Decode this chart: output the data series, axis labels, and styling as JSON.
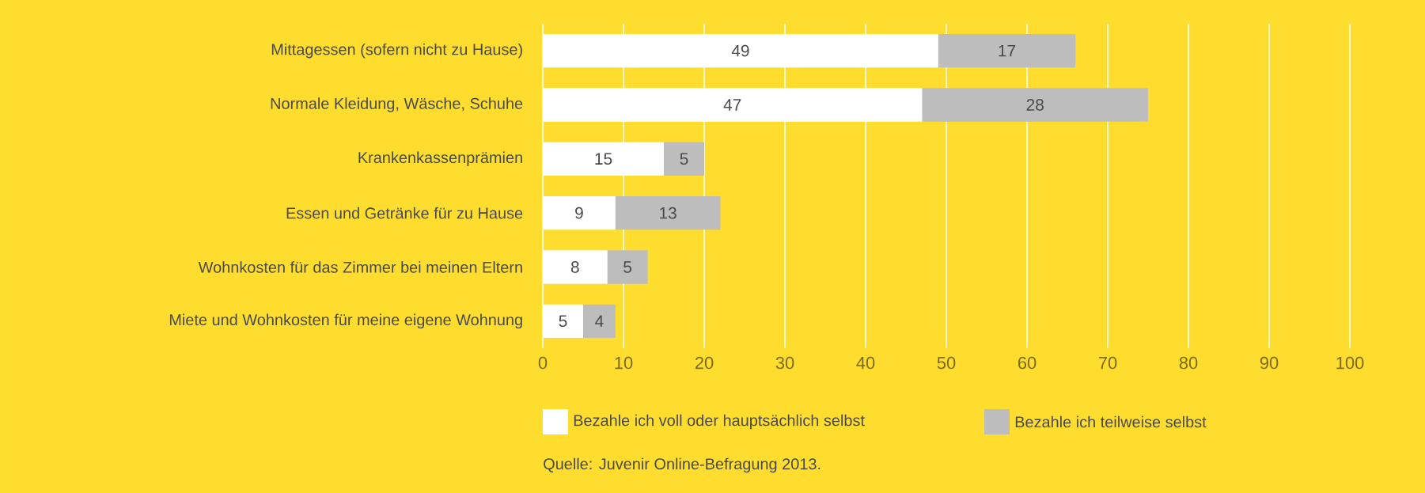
{
  "chart_data": {
    "type": "bar",
    "orientation": "horizontal",
    "stacked": true,
    "data_labels": true,
    "grid": "x",
    "legend": "bottom",
    "categories": [
      "Mittagessen (sofern nicht zu Hause)",
      "Normale Kleidung, Wäsche, Schuhe",
      "Krankenkassenprämien",
      "Essen und Getränke für zu Hause",
      "Wohnkosten für das Zimmer bei meinen Eltern",
      "Miete und Wohnkosten für meine eigene Wohnung"
    ],
    "series": [
      {
        "name": "Bezahle ich voll oder hauptsächlich selbst",
        "color": "#ffffff",
        "values": [
          49,
          47,
          15,
          9,
          8,
          5
        ]
      },
      {
        "name": "Bezahle ich teilweise selbst",
        "color": "#bdbdbd",
        "values": [
          17,
          28,
          5,
          13,
          5,
          4
        ]
      }
    ],
    "xlim": [
      0,
      100
    ],
    "xticks": [
      0,
      10,
      20,
      30,
      40,
      50,
      60,
      70,
      80,
      90,
      100
    ],
    "annotations": [
      "Quelle: Juvenir Online-Befragung 2013."
    ]
  }
}
